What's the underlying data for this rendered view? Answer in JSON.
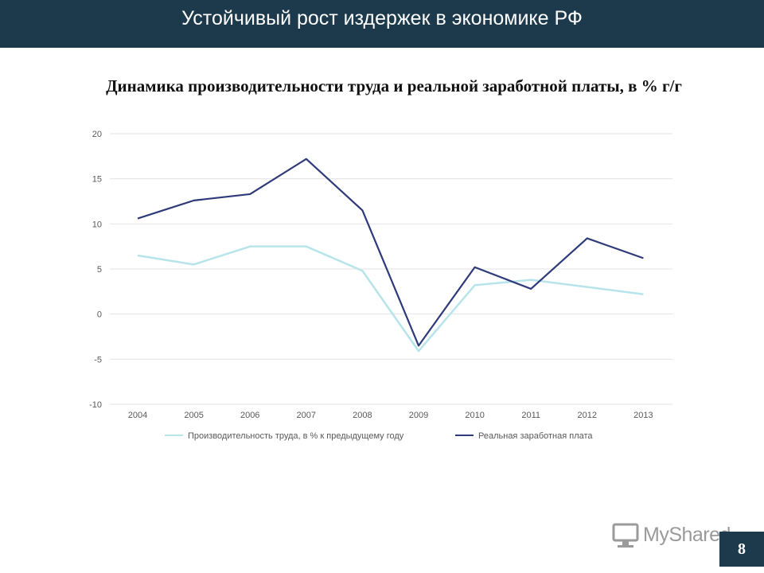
{
  "slide": {
    "title": "Устойчивый рост издержек в экономике РФ",
    "page_number": "8",
    "watermark_text": "MyShared",
    "header_color": "#1d3a4c"
  },
  "chart_data": {
    "type": "line",
    "title": "Динамика производительности труда и реальной заработной платы, в % г/г",
    "categories": [
      "2004",
      "2005",
      "2006",
      "2007",
      "2008",
      "2009",
      "2010",
      "2011",
      "2012",
      "2013"
    ],
    "series": [
      {
        "name": "Производительность труда, в % к предыдущему году",
        "color": "#b7e4ea",
        "values": [
          6.5,
          5.5,
          7.5,
          7.5,
          4.8,
          -4.1,
          3.2,
          3.8,
          3.0,
          2.2
        ]
      },
      {
        "name": "Реальная заработная плата",
        "color": "#2e3a7a",
        "values": [
          10.6,
          12.6,
          13.3,
          17.2,
          11.5,
          -3.5,
          5.2,
          2.8,
          8.4,
          6.2
        ]
      }
    ],
    "y_ticks": [
      "20",
      "15",
      "10",
      "5",
      "0",
      "-5",
      "-10"
    ],
    "ylim": [
      -10,
      20
    ],
    "grid": true,
    "legend_position": "bottom"
  }
}
